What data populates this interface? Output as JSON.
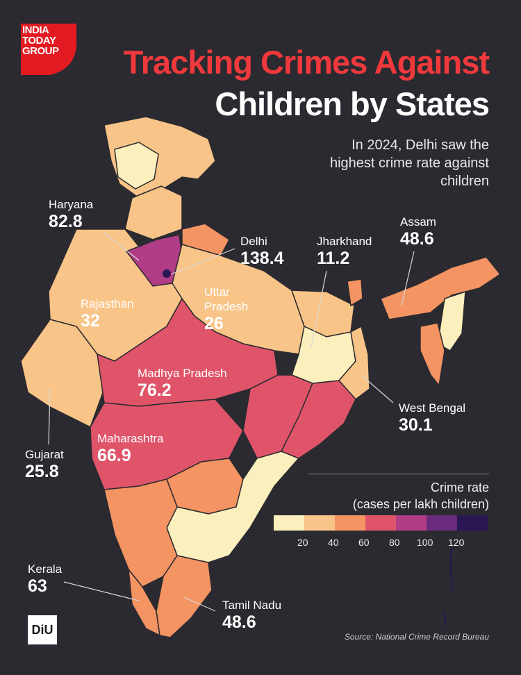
{
  "brand": {
    "logo_text": "INDIA TODAY GROUP",
    "footer_logo": "DiU"
  },
  "title_line1": "Tracking Crimes Against",
  "title_line2": "Children by States",
  "subtitle": "In 2024, Delhi saw the highest crime rate against children",
  "states": [
    {
      "key": "haryana",
      "name": "Haryana",
      "value": "82.8"
    },
    {
      "key": "delhi",
      "name": "Delhi",
      "value": "138.4"
    },
    {
      "key": "jharkhand",
      "name": "Jharkhand",
      "value": "11.2"
    },
    {
      "key": "assam",
      "name": "Assam",
      "value": "48.6"
    },
    {
      "key": "rajasthan",
      "name": "Rajasthan",
      "value": "32"
    },
    {
      "key": "up",
      "name": "Uttar Pradesh",
      "value": "26"
    },
    {
      "key": "mp",
      "name": "Madhya Pradesh",
      "value": "76.2"
    },
    {
      "key": "wb",
      "name": "West Bengal",
      "value": "30.1"
    },
    {
      "key": "maharashtra",
      "name": "Maharashtra",
      "value": "66.9"
    },
    {
      "key": "gujarat",
      "name": "Gujarat",
      "value": "25.8"
    },
    {
      "key": "kerala",
      "name": "Kerala",
      "value": "63"
    },
    {
      "key": "tn",
      "name": "Tamil Nadu",
      "value": "48.6"
    }
  ],
  "legend": {
    "title_line1": "Crime rate",
    "title_line2": "(cases per lakh children)",
    "ticks": [
      "20",
      "40",
      "60",
      "80",
      "100",
      "120"
    ],
    "colors": [
      "#fbf0bd",
      "#f8c487",
      "#f39462",
      "#e0546a",
      "#b03d86",
      "#6a2a7e",
      "#2a1753"
    ]
  },
  "source": "Source: National Crime Record Bureau",
  "colors": {
    "background": "#2b2a30",
    "title_accent": "#f0393c"
  }
}
